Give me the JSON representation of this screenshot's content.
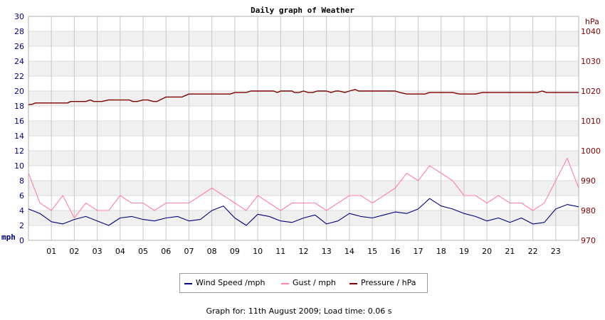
{
  "chart_data": {
    "type": "line",
    "title": "Daily graph of Weather",
    "x_tick_labels": [
      "01",
      "02",
      "03",
      "04",
      "05",
      "06",
      "07",
      "08",
      "09",
      "10",
      "11",
      "12",
      "13",
      "14",
      "15",
      "16",
      "17",
      "18",
      "19",
      "20",
      "21",
      "22",
      "23"
    ],
    "x_range_hours": [
      0,
      24
    ],
    "y_left": {
      "unit_label": "mph",
      "range": [
        0,
        30
      ],
      "ticks": [
        0,
        2,
        4,
        6,
        8,
        10,
        12,
        14,
        16,
        18,
        20,
        22,
        24,
        26,
        28,
        30
      ],
      "color": "#000080"
    },
    "y_right": {
      "unit_label": "hPa",
      "range": [
        970,
        1045
      ],
      "ticks": [
        970,
        980,
        990,
        1000,
        1010,
        1020,
        1030,
        1040
      ],
      "color": "#800000"
    },
    "grid": "horizontal bands and vertical hour lines",
    "series": [
      {
        "name": "Wind Speed /mph",
        "axis": "left",
        "color": "#000080",
        "x": [
          0,
          0.5,
          1,
          1.5,
          2,
          2.5,
          3,
          3.5,
          4,
          4.5,
          5,
          5.5,
          6,
          6.5,
          7,
          7.5,
          8,
          8.5,
          9,
          9.5,
          10,
          10.5,
          11,
          11.5,
          12,
          12.5,
          13,
          13.5,
          14,
          14.5,
          15,
          15.5,
          16,
          16.5,
          17,
          17.5,
          18,
          18.5,
          19,
          19.5,
          20,
          20.5,
          21,
          21.5,
          22,
          22.5,
          23,
          23.5,
          24
        ],
        "values": [
          4.2,
          3.6,
          2.5,
          2.2,
          2.8,
          3.2,
          2.6,
          2.0,
          3.0,
          3.2,
          2.8,
          2.6,
          3.0,
          3.2,
          2.6,
          2.8,
          4.0,
          4.6,
          3.0,
          2.0,
          3.5,
          3.2,
          2.6,
          2.4,
          3.0,
          3.4,
          2.2,
          2.6,
          3.6,
          3.2,
          3.0,
          3.4,
          3.8,
          3.6,
          4.2,
          5.6,
          4.6,
          4.2,
          3.6,
          3.2,
          2.6,
          3.0,
          2.4,
          3.0,
          2.2,
          2.4,
          4.2,
          4.8,
          4.5
        ]
      },
      {
        "name": "Gust / mph",
        "axis": "left",
        "color": "#ff80b0",
        "x": [
          0,
          0.5,
          1,
          1.5,
          2,
          2.5,
          3,
          3.5,
          4,
          4.5,
          5,
          5.5,
          6,
          6.5,
          7,
          7.5,
          8,
          8.5,
          9,
          9.5,
          10,
          10.5,
          11,
          11.5,
          12,
          12.5,
          13,
          13.5,
          14,
          14.5,
          15,
          15.5,
          16,
          16.5,
          17,
          17.5,
          18,
          18.5,
          19,
          19.5,
          20,
          20.5,
          21,
          21.5,
          22,
          22.5,
          23,
          23.5,
          24
        ],
        "values": [
          9,
          5,
          4,
          6,
          3,
          5,
          4,
          4,
          6,
          5,
          5,
          4,
          5,
          5,
          5,
          6,
          7,
          6,
          5,
          4,
          6,
          5,
          4,
          5,
          5,
          5,
          4,
          5,
          6,
          6,
          5,
          6,
          7,
          9,
          8,
          10,
          9,
          8,
          6,
          6,
          5,
          6,
          5,
          5,
          4,
          5,
          8,
          11,
          7
        ]
      },
      {
        "name": "Pressure / hPa",
        "axis": "right",
        "color": "#800000",
        "x": [
          0,
          0.15,
          0.3,
          1,
          1.7,
          1.85,
          2.5,
          2.7,
          2.85,
          3.2,
          3.5,
          4,
          4.4,
          4.55,
          4.75,
          5,
          5.2,
          5.45,
          5.6,
          6,
          6.2,
          6.5,
          6.7,
          6.85,
          7,
          8,
          8.8,
          9,
          9.5,
          9.7,
          10,
          10.7,
          10.85,
          11,
          11.5,
          11.6,
          11.8,
          12.0,
          12.2,
          12.4,
          12.6,
          13,
          13.2,
          13.4,
          13.55,
          13.8,
          14,
          14.25,
          14.4,
          14.6,
          15,
          15.5,
          16,
          16.2,
          16.5,
          16.8,
          17.3,
          17.5,
          17.8,
          18.5,
          18.8,
          19,
          19.5,
          19.8,
          20,
          20.7,
          21,
          21.5,
          22,
          22.2,
          22.4,
          22.6,
          22.8,
          23.2,
          23.5,
          24
        ],
        "values": [
          1015.5,
          1015.5,
          1016,
          1016,
          1016,
          1016.5,
          1016.5,
          1017,
          1016.5,
          1016.5,
          1017,
          1017,
          1017,
          1016.5,
          1016.5,
          1017,
          1017,
          1016.5,
          1016.5,
          1018,
          1018,
          1018,
          1018,
          1018.5,
          1019,
          1019,
          1019,
          1019.5,
          1019.5,
          1020,
          1020,
          1020,
          1019.5,
          1020,
          1020,
          1019.5,
          1019.5,
          1020,
          1019.5,
          1019.5,
          1020,
          1020,
          1019.5,
          1020,
          1020,
          1019.5,
          1020,
          1020.5,
          1020,
          1020,
          1020,
          1020,
          1020,
          1019.5,
          1019,
          1019,
          1019,
          1019.5,
          1019.5,
          1019.5,
          1019,
          1019,
          1019,
          1019.5,
          1019.5,
          1019.5,
          1019.5,
          1019.5,
          1019.5,
          1019.5,
          1020,
          1019.5,
          1019.5,
          1019.5,
          1019.5,
          1019.5
        ]
      }
    ],
    "legend_placement": "bottom-center"
  },
  "legend": {
    "wind": "Wind Speed /mph",
    "gust": "Gust / mph",
    "pressure": "Pressure / hPa"
  },
  "footer_text": "Graph for: 11th August 2009; Load time: 0.06 s"
}
